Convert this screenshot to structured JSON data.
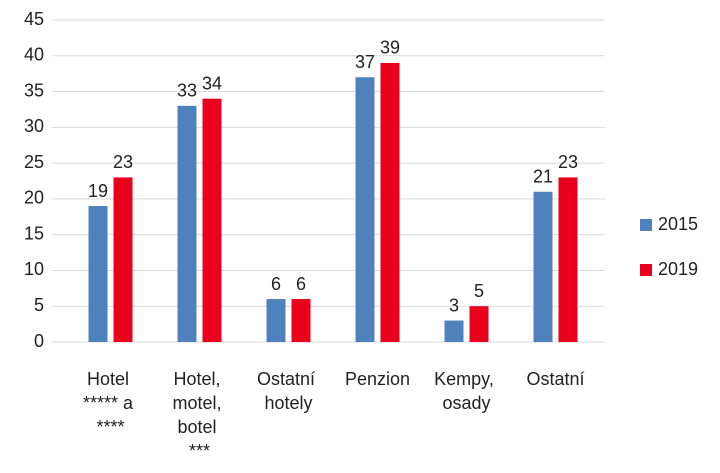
{
  "chart_data": {
    "type": "bar",
    "categories": [
      "Hotel ***** a ****",
      "Hotel, motel, botel ***",
      "Ostatní hotely",
      "Penzion",
      "Kempy, osady",
      "Ostatní"
    ],
    "series": [
      {
        "name": "2015",
        "color": "#4f81bd",
        "values": [
          19,
          33,
          6,
          37,
          3,
          21
        ]
      },
      {
        "name": "2019",
        "color": "#e8001c",
        "values": [
          23,
          34,
          6,
          39,
          5,
          23
        ]
      }
    ],
    "ylim": [
      0,
      45
    ],
    "yticks": [
      0,
      5,
      10,
      15,
      20,
      25,
      30,
      35,
      40,
      45
    ],
    "grid": true,
    "legend": "right"
  }
}
